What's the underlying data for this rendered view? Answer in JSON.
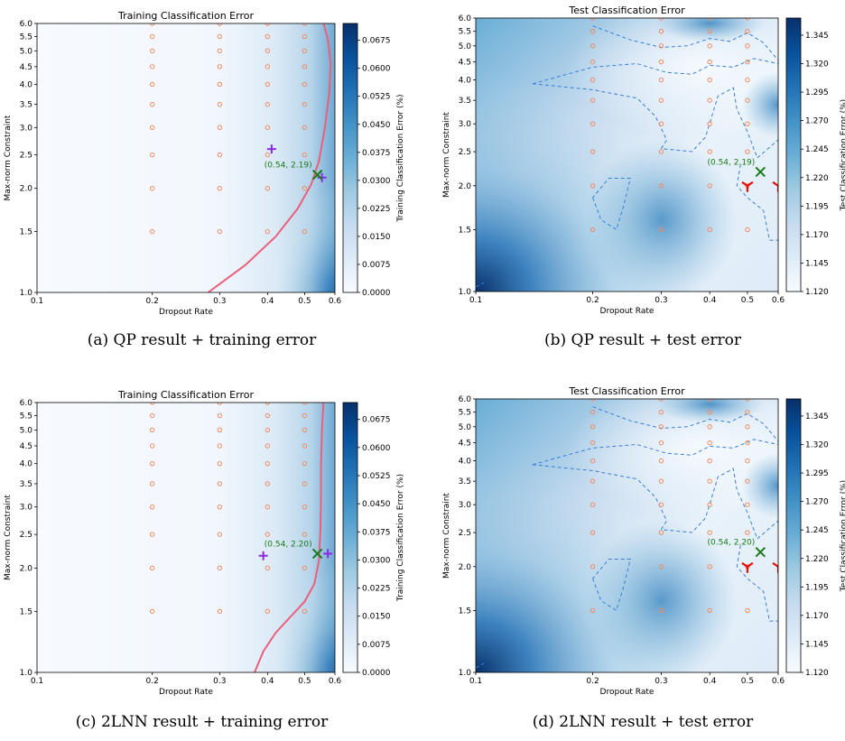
{
  "chart_data": [
    {
      "type": "heatmap",
      "title": "Training Classification Error",
      "xlabel": "Dropout Rate",
      "ylabel": "Max-norm Constraint",
      "colorbar_label": "Training Classification Error (%)",
      "caption": "(a) QP result + training error",
      "x_scale": "log",
      "y_scale": "log",
      "xlim": [
        0.1,
        0.6
      ],
      "ylim": [
        1.0,
        6.0
      ],
      "x_ticks": [
        "0.1",
        "0.2",
        "0.3",
        "0.4",
        "0.5",
        "0.6"
      ],
      "y_ticks": [
        "1.0",
        "1.5",
        "2.0",
        "2.5",
        "3.0",
        "3.5",
        "4.0",
        "4.5",
        "5.0",
        "5.5",
        "6.0"
      ],
      "colorbar_ticks": [
        "0.0000",
        "0.0075",
        "0.0150",
        "0.0225",
        "0.0300",
        "0.0375",
        "0.0450",
        "0.0525",
        "0.0600",
        "0.0675"
      ],
      "colorbar_range": [
        0.0,
        0.072
      ],
      "colormap": "Blues",
      "grid_points": {
        "x": [
          0.2,
          0.3,
          0.4,
          0.5
        ],
        "y": [
          1.5,
          2.0,
          2.5,
          3.0,
          3.5,
          4.0,
          4.5,
          5.0,
          5.5,
          6.0
        ]
      },
      "boundary_curve": [
        [
          0.28,
          1.0
        ],
        [
          0.35,
          1.2
        ],
        [
          0.42,
          1.45
        ],
        [
          0.48,
          1.75
        ],
        [
          0.52,
          2.05
        ],
        [
          0.545,
          2.4
        ],
        [
          0.565,
          3.0
        ],
        [
          0.58,
          3.8
        ],
        [
          0.585,
          4.6
        ],
        [
          0.575,
          5.4
        ],
        [
          0.56,
          6.0
        ]
      ],
      "markers": [
        {
          "type": "plus",
          "x": 0.41,
          "y": 2.6,
          "color": "#8a2be2"
        },
        {
          "type": "plus",
          "x": 0.555,
          "y": 2.15,
          "color": "#8a2be2"
        },
        {
          "type": "cross",
          "x": 0.54,
          "y": 2.19,
          "color": "#1a7a1a"
        }
      ],
      "annotation": {
        "text": "(0.54, 2.19)",
        "x": 0.54,
        "y": 2.19,
        "color": "#1a7a1a"
      },
      "dashed_contours": []
    },
    {
      "type": "heatmap",
      "title": "Test Classification Error",
      "xlabel": "Dropout Rate",
      "ylabel": "Max-norm Constraint",
      "colorbar_label": "Test Classification Error (%)",
      "caption": "(b) QP result + test error",
      "x_scale": "log",
      "y_scale": "log",
      "xlim": [
        0.1,
        0.6
      ],
      "ylim": [
        1.0,
        6.0
      ],
      "x_ticks": [
        "0.1",
        "0.2",
        "0.3",
        "0.4",
        "0.5",
        "0.6"
      ],
      "y_ticks": [
        "1.0",
        "1.5",
        "2.0",
        "2.5",
        "3.0",
        "3.5",
        "4.0",
        "4.5",
        "5.0",
        "5.5",
        "6.0"
      ],
      "colorbar_ticks": [
        "1.120",
        "1.145",
        "1.170",
        "1.195",
        "1.220",
        "1.245",
        "1.270",
        "1.295",
        "1.320",
        "1.345"
      ],
      "colorbar_range": [
        1.12,
        1.36
      ],
      "colormap": "Blues",
      "grid_points": {
        "x": [
          0.2,
          0.3,
          0.4,
          0.5
        ],
        "y": [
          1.5,
          2.0,
          2.5,
          3.0,
          3.5,
          4.0,
          4.5,
          5.0,
          5.5,
          6.0
        ]
      },
      "boundary_curve": [],
      "markers": [
        {
          "type": "tri",
          "x": 0.5,
          "y": 2.0,
          "color": "#e01010"
        },
        {
          "type": "tri",
          "x": 0.6,
          "y": 2.0,
          "color": "#e01010"
        },
        {
          "type": "cross",
          "x": 0.54,
          "y": 2.19,
          "color": "#1a7a1a"
        }
      ],
      "annotation": {
        "text": "(0.54, 2.19)",
        "x": 0.54,
        "y": 2.19,
        "color": "#1a7a1a"
      },
      "dashed_contours": [
        [
          [
            0.2,
            5.7
          ],
          [
            0.25,
            5.2
          ],
          [
            0.3,
            4.95
          ],
          [
            0.35,
            5.0
          ],
          [
            0.4,
            5.25
          ],
          [
            0.45,
            5.15
          ],
          [
            0.5,
            5.45
          ],
          [
            0.55,
            5.1
          ],
          [
            0.6,
            4.55
          ]
        ],
        [
          [
            0.14,
            3.9
          ],
          [
            0.2,
            4.35
          ],
          [
            0.26,
            4.45
          ],
          [
            0.31,
            4.2
          ],
          [
            0.36,
            4.15
          ],
          [
            0.4,
            4.4
          ],
          [
            0.46,
            4.35
          ],
          [
            0.52,
            4.6
          ],
          [
            0.6,
            4.45
          ]
        ],
        [
          [
            0.14,
            3.9
          ],
          [
            0.2,
            3.75
          ],
          [
            0.26,
            3.55
          ],
          [
            0.29,
            3.15
          ],
          [
            0.31,
            2.7
          ],
          [
            0.3,
            2.55
          ],
          [
            0.36,
            2.5
          ],
          [
            0.39,
            2.75
          ],
          [
            0.42,
            3.6
          ],
          [
            0.46,
            3.8
          ],
          [
            0.47,
            3.3
          ],
          [
            0.5,
            2.85
          ],
          [
            0.53,
            2.4
          ],
          [
            0.6,
            2.7
          ]
        ],
        [
          [
            0.2,
            1.85
          ],
          [
            0.21,
            1.6
          ],
          [
            0.23,
            1.5
          ],
          [
            0.24,
            1.75
          ],
          [
            0.25,
            2.1
          ],
          [
            0.22,
            2.1
          ],
          [
            0.2,
            1.85
          ]
        ],
        [
          [
            0.48,
            2.3
          ],
          [
            0.47,
            2.0
          ],
          [
            0.5,
            1.85
          ],
          [
            0.55,
            1.7
          ],
          [
            0.57,
            1.4
          ],
          [
            0.6,
            1.4
          ]
        ],
        [
          [
            0.1,
            1.03
          ],
          [
            0.105,
            1.06
          ]
        ]
      ]
    },
    {
      "type": "heatmap",
      "title": "Training Classification Error",
      "xlabel": "Dropout Rate",
      "ylabel": "Max-norm Constraint",
      "colorbar_label": "Training Classification Error (%)",
      "caption": "(c) 2LNN result + training error",
      "x_scale": "log",
      "y_scale": "log",
      "xlim": [
        0.1,
        0.6
      ],
      "ylim": [
        1.0,
        6.0
      ],
      "x_ticks": [
        "0.1",
        "0.2",
        "0.3",
        "0.4",
        "0.5",
        "0.6"
      ],
      "y_ticks": [
        "1.0",
        "1.5",
        "2.0",
        "2.5",
        "3.0",
        "3.5",
        "4.0",
        "4.5",
        "5.0",
        "5.5",
        "6.0"
      ],
      "colorbar_ticks": [
        "0.0000",
        "0.0075",
        "0.0150",
        "0.0225",
        "0.0300",
        "0.0375",
        "0.0450",
        "0.0525",
        "0.0600",
        "0.0675"
      ],
      "colorbar_range": [
        0.0,
        0.072
      ],
      "colormap": "Blues",
      "grid_points": {
        "x": [
          0.2,
          0.3,
          0.4,
          0.5
        ],
        "y": [
          1.5,
          2.0,
          2.5,
          3.0,
          3.5,
          4.0,
          4.5,
          5.0,
          5.5,
          6.0
        ]
      },
      "boundary_curve": [
        [
          0.37,
          1.0
        ],
        [
          0.39,
          1.15
        ],
        [
          0.42,
          1.3
        ],
        [
          0.46,
          1.45
        ],
        [
          0.5,
          1.6
        ],
        [
          0.53,
          1.8
        ],
        [
          0.545,
          2.1
        ],
        [
          0.55,
          2.6
        ],
        [
          0.552,
          3.2
        ],
        [
          0.552,
          4.0
        ],
        [
          0.555,
          5.0
        ],
        [
          0.56,
          6.0
        ]
      ],
      "markers": [
        {
          "type": "plus",
          "x": 0.39,
          "y": 2.17,
          "color": "#8a2be2"
        },
        {
          "type": "plus",
          "x": 0.575,
          "y": 2.2,
          "color": "#8a2be2"
        },
        {
          "type": "cross",
          "x": 0.54,
          "y": 2.2,
          "color": "#1a7a1a"
        }
      ],
      "annotation": {
        "text": "(0.54, 2.20)",
        "x": 0.54,
        "y": 2.2,
        "color": "#1a7a1a"
      },
      "dashed_contours": []
    },
    {
      "type": "heatmap",
      "title": "Test Classification Error",
      "xlabel": "Dropout Rate",
      "ylabel": "Max-norm Constraint",
      "colorbar_label": "Test Classification Error (%)",
      "caption": "(d) 2LNN result + test error",
      "x_scale": "log",
      "y_scale": "log",
      "xlim": [
        0.1,
        0.6
      ],
      "ylim": [
        1.0,
        6.0
      ],
      "x_ticks": [
        "0.1",
        "0.2",
        "0.3",
        "0.4",
        "0.5",
        "0.6"
      ],
      "y_ticks": [
        "1.0",
        "1.5",
        "2.0",
        "2.5",
        "3.0",
        "3.5",
        "4.0",
        "4.5",
        "5.0",
        "5.5",
        "6.0"
      ],
      "colorbar_ticks": [
        "1.120",
        "1.145",
        "1.170",
        "1.195",
        "1.220",
        "1.245",
        "1.270",
        "1.295",
        "1.320",
        "1.345"
      ],
      "colorbar_range": [
        1.12,
        1.36
      ],
      "colormap": "Blues",
      "grid_points": {
        "x": [
          0.2,
          0.3,
          0.4,
          0.5
        ],
        "y": [
          1.5,
          2.0,
          2.5,
          3.0,
          3.5,
          4.0,
          4.5,
          5.0,
          5.5,
          6.0
        ]
      },
      "boundary_curve": [],
      "markers": [
        {
          "type": "tri",
          "x": 0.5,
          "y": 2.0,
          "color": "#e01010"
        },
        {
          "type": "tri",
          "x": 0.6,
          "y": 2.0,
          "color": "#e01010"
        },
        {
          "type": "cross",
          "x": 0.54,
          "y": 2.2,
          "color": "#1a7a1a"
        }
      ],
      "annotation": {
        "text": "(0.54, 2.20)",
        "x": 0.54,
        "y": 2.2,
        "color": "#1a7a1a"
      },
      "dashed_contours": [
        [
          [
            0.2,
            5.7
          ],
          [
            0.25,
            5.2
          ],
          [
            0.3,
            4.95
          ],
          [
            0.35,
            5.0
          ],
          [
            0.4,
            5.25
          ],
          [
            0.45,
            5.15
          ],
          [
            0.5,
            5.45
          ],
          [
            0.55,
            5.1
          ],
          [
            0.6,
            4.55
          ]
        ],
        [
          [
            0.14,
            3.9
          ],
          [
            0.2,
            4.35
          ],
          [
            0.26,
            4.45
          ],
          [
            0.31,
            4.2
          ],
          [
            0.36,
            4.15
          ],
          [
            0.4,
            4.4
          ],
          [
            0.46,
            4.35
          ],
          [
            0.52,
            4.6
          ],
          [
            0.6,
            4.45
          ]
        ],
        [
          [
            0.14,
            3.9
          ],
          [
            0.2,
            3.75
          ],
          [
            0.26,
            3.55
          ],
          [
            0.29,
            3.15
          ],
          [
            0.31,
            2.7
          ],
          [
            0.3,
            2.55
          ],
          [
            0.36,
            2.5
          ],
          [
            0.39,
            2.75
          ],
          [
            0.42,
            3.6
          ],
          [
            0.46,
            3.8
          ],
          [
            0.47,
            3.3
          ],
          [
            0.5,
            2.85
          ],
          [
            0.53,
            2.4
          ],
          [
            0.6,
            2.7
          ]
        ],
        [
          [
            0.2,
            1.85
          ],
          [
            0.21,
            1.6
          ],
          [
            0.23,
            1.5
          ],
          [
            0.24,
            1.75
          ],
          [
            0.25,
            2.1
          ],
          [
            0.22,
            2.1
          ],
          [
            0.2,
            1.85
          ]
        ],
        [
          [
            0.48,
            2.3
          ],
          [
            0.47,
            2.0
          ],
          [
            0.5,
            1.85
          ],
          [
            0.55,
            1.7
          ],
          [
            0.57,
            1.4
          ],
          [
            0.6,
            1.4
          ]
        ],
        [
          [
            0.1,
            1.03
          ],
          [
            0.105,
            1.06
          ]
        ]
      ]
    }
  ]
}
